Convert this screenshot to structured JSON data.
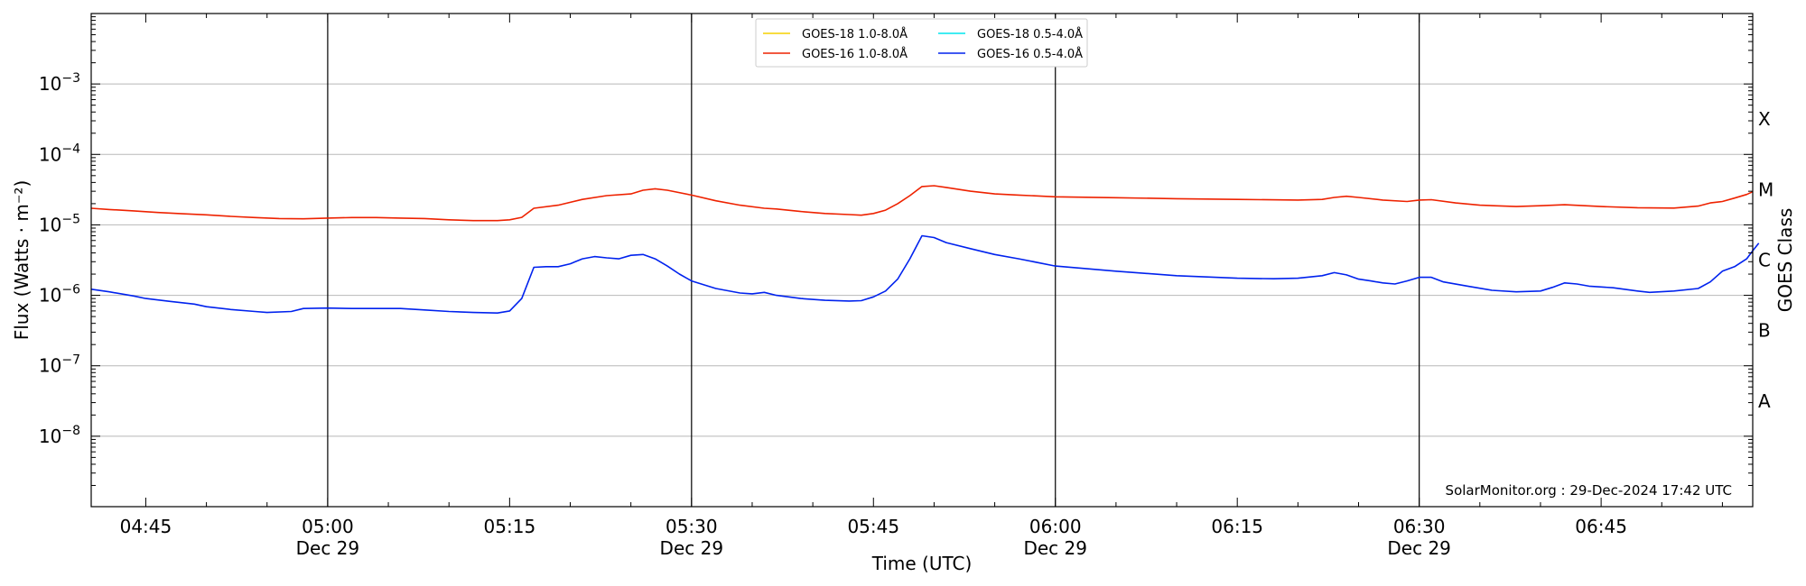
{
  "chart_data": {
    "type": "line",
    "title": "",
    "xlabel": "Time (UTC)",
    "ylabel": "Flux (Watts · m⁻²)",
    "y2label": "GOES Class",
    "yscale": "log",
    "ylim": [
      1e-09,
      0.01
    ],
    "xlim_minutes": [
      40.5,
      177.5
    ],
    "x_ticks": [
      {
        "minute": 45,
        "label": "04:45",
        "sublabel": ""
      },
      {
        "minute": 60,
        "label": "05:00",
        "sublabel": "Dec 29"
      },
      {
        "minute": 75,
        "label": "05:15",
        "sublabel": ""
      },
      {
        "minute": 90,
        "label": "05:30",
        "sublabel": "Dec 29"
      },
      {
        "minute": 105,
        "label": "05:45",
        "sublabel": ""
      },
      {
        "minute": 120,
        "label": "06:00",
        "sublabel": "Dec 29"
      },
      {
        "minute": 135,
        "label": "06:15",
        "sublabel": ""
      },
      {
        "minute": 150,
        "label": "06:30",
        "sublabel": "Dec 29"
      },
      {
        "minute": 165,
        "label": "06:45",
        "sublabel": ""
      }
    ],
    "y_ticks": [
      {
        "value": 1e-08,
        "base": "10",
        "exp": "−8"
      },
      {
        "value": 1e-07,
        "base": "10",
        "exp": "−7"
      },
      {
        "value": 1e-06,
        "base": "10",
        "exp": "−6"
      },
      {
        "value": 1e-05,
        "base": "10",
        "exp": "−5"
      },
      {
        "value": 0.0001,
        "base": "10",
        "exp": "−4"
      },
      {
        "value": 0.001,
        "base": "10",
        "exp": "−3"
      }
    ],
    "class_ticks": [
      {
        "value": 3.16e-08,
        "label": "A"
      },
      {
        "value": 3.16e-07,
        "label": "B"
      },
      {
        "value": 3.16e-06,
        "label": "C"
      },
      {
        "value": 3.16e-05,
        "label": "M"
      },
      {
        "value": 0.000316,
        "label": "X"
      }
    ],
    "grid": {
      "horizontal": true,
      "vertical_day_lines": true
    },
    "legend_position": "top-center",
    "legend": [
      {
        "name": "GOES-18 1.0-8.0Å",
        "color": "#f5d000"
      },
      {
        "name": "GOES-18 0.5-4.0Å",
        "color": "#00e5ee"
      },
      {
        "name": "GOES-16 1.0-8.0Å",
        "color": "#ee2200"
      },
      {
        "name": "GOES-16 0.5-4.0Å",
        "color": "#0022ee"
      }
    ],
    "series": [
      {
        "name": "GOES-16 1.0-8.0Å",
        "color": "#ee2200",
        "points": [
          [
            40.5,
            1.72e-05
          ],
          [
            42,
            1.65e-05
          ],
          [
            44,
            1.58e-05
          ],
          [
            46,
            1.5e-05
          ],
          [
            48,
            1.44e-05
          ],
          [
            50,
            1.39e-05
          ],
          [
            52,
            1.32e-05
          ],
          [
            54,
            1.27e-05
          ],
          [
            56,
            1.23e-05
          ],
          [
            58,
            1.22e-05
          ],
          [
            60,
            1.25e-05
          ],
          [
            62,
            1.27e-05
          ],
          [
            64,
            1.27e-05
          ],
          [
            66,
            1.25e-05
          ],
          [
            68,
            1.23e-05
          ],
          [
            70,
            1.18e-05
          ],
          [
            72,
            1.15e-05
          ],
          [
            74,
            1.15e-05
          ],
          [
            75,
            1.18e-05
          ],
          [
            76,
            1.28e-05
          ],
          [
            77,
            1.72e-05
          ],
          [
            79,
            1.9e-05
          ],
          [
            81,
            2.3e-05
          ],
          [
            83,
            2.6e-05
          ],
          [
            85,
            2.75e-05
          ],
          [
            86,
            3.1e-05
          ],
          [
            87,
            3.25e-05
          ],
          [
            88,
            3.1e-05
          ],
          [
            90,
            2.65e-05
          ],
          [
            92,
            2.2e-05
          ],
          [
            94,
            1.9e-05
          ],
          [
            96,
            1.72e-05
          ],
          [
            97,
            1.68e-05
          ],
          [
            99,
            1.55e-05
          ],
          [
            101,
            1.45e-05
          ],
          [
            103,
            1.4e-05
          ],
          [
            104,
            1.37e-05
          ],
          [
            105,
            1.45e-05
          ],
          [
            106,
            1.62e-05
          ],
          [
            107,
            2e-05
          ],
          [
            108,
            2.6e-05
          ],
          [
            109,
            3.5e-05
          ],
          [
            110,
            3.6e-05
          ],
          [
            111,
            3.4e-05
          ],
          [
            113,
            3e-05
          ],
          [
            115,
            2.75e-05
          ],
          [
            117,
            2.65e-05
          ],
          [
            120,
            2.5e-05
          ],
          [
            125,
            2.43e-05
          ],
          [
            130,
            2.35e-05
          ],
          [
            135,
            2.3e-05
          ],
          [
            140,
            2.25e-05
          ],
          [
            142,
            2.3e-05
          ],
          [
            143,
            2.45e-05
          ],
          [
            144,
            2.55e-05
          ],
          [
            145,
            2.45e-05
          ],
          [
            147,
            2.25e-05
          ],
          [
            149,
            2.15e-05
          ],
          [
            150,
            2.25e-05
          ],
          [
            151,
            2.28e-05
          ],
          [
            153,
            2.05e-05
          ],
          [
            155,
            1.9e-05
          ],
          [
            158,
            1.82e-05
          ],
          [
            160,
            1.87e-05
          ],
          [
            162,
            1.93e-05
          ],
          [
            165,
            1.82e-05
          ],
          [
            168,
            1.75e-05
          ],
          [
            171,
            1.73e-05
          ],
          [
            173,
            1.85e-05
          ],
          [
            174,
            2.05e-05
          ],
          [
            175,
            2.15e-05
          ],
          [
            176,
            2.4e-05
          ],
          [
            177,
            2.7e-05
          ],
          [
            177.5,
            2.95e-05
          ]
        ]
      },
      {
        "name": "GOES-16 0.5-4.0Å",
        "color": "#0022ee",
        "points": [
          [
            40.5,
            1.22e-06
          ],
          [
            42,
            1.12e-06
          ],
          [
            44,
            9.8e-07
          ],
          [
            45,
            9e-07
          ],
          [
            47,
            8.2e-07
          ],
          [
            49,
            7.5e-07
          ],
          [
            50,
            6.9e-07
          ],
          [
            52,
            6.3e-07
          ],
          [
            54,
            5.9e-07
          ],
          [
            55,
            5.7e-07
          ],
          [
            57,
            5.9e-07
          ],
          [
            58,
            6.5e-07
          ],
          [
            60,
            6.6e-07
          ],
          [
            62,
            6.5e-07
          ],
          [
            64,
            6.5e-07
          ],
          [
            66,
            6.5e-07
          ],
          [
            68,
            6.2e-07
          ],
          [
            70,
            5.9e-07
          ],
          [
            72,
            5.7e-07
          ],
          [
            74,
            5.6e-07
          ],
          [
            75,
            6e-07
          ],
          [
            76,
            9e-07
          ],
          [
            77,
            2.5e-06
          ],
          [
            78,
            2.55e-06
          ],
          [
            79,
            2.55e-06
          ],
          [
            80,
            2.8e-06
          ],
          [
            81,
            3.3e-06
          ],
          [
            82,
            3.55e-06
          ],
          [
            83,
            3.4e-06
          ],
          [
            84,
            3.3e-06
          ],
          [
            85,
            3.7e-06
          ],
          [
            86,
            3.8e-06
          ],
          [
            87,
            3.3e-06
          ],
          [
            88,
            2.6e-06
          ],
          [
            89,
            2e-06
          ],
          [
            90,
            1.6e-06
          ],
          [
            92,
            1.25e-06
          ],
          [
            94,
            1.08e-06
          ],
          [
            95,
            1.05e-06
          ],
          [
            96,
            1.1e-06
          ],
          [
            97,
            1e-06
          ],
          [
            99,
            9e-07
          ],
          [
            101,
            8.5e-07
          ],
          [
            103,
            8.3e-07
          ],
          [
            104,
            8.4e-07
          ],
          [
            105,
            9.5e-07
          ],
          [
            106,
            1.15e-06
          ],
          [
            107,
            1.7e-06
          ],
          [
            108,
            3.3e-06
          ],
          [
            109,
            7e-06
          ],
          [
            110,
            6.6e-06
          ],
          [
            111,
            5.6e-06
          ],
          [
            113,
            4.6e-06
          ],
          [
            115,
            3.8e-06
          ],
          [
            117,
            3.3e-06
          ],
          [
            120,
            2.6e-06
          ],
          [
            125,
            2.2e-06
          ],
          [
            130,
            1.9e-06
          ],
          [
            135,
            1.75e-06
          ],
          [
            138,
            1.72e-06
          ],
          [
            140,
            1.75e-06
          ],
          [
            142,
            1.9e-06
          ],
          [
            143,
            2.1e-06
          ],
          [
            144,
            1.95e-06
          ],
          [
            145,
            1.7e-06
          ],
          [
            146,
            1.6e-06
          ],
          [
            147,
            1.5e-06
          ],
          [
            148,
            1.45e-06
          ],
          [
            149,
            1.6e-06
          ],
          [
            150,
            1.8e-06
          ],
          [
            151,
            1.8e-06
          ],
          [
            152,
            1.55e-06
          ],
          [
            154,
            1.35e-06
          ],
          [
            156,
            1.18e-06
          ],
          [
            158,
            1.12e-06
          ],
          [
            160,
            1.15e-06
          ],
          [
            161,
            1.3e-06
          ],
          [
            162,
            1.5e-06
          ],
          [
            163,
            1.45e-06
          ],
          [
            164,
            1.35e-06
          ],
          [
            166,
            1.28e-06
          ],
          [
            168,
            1.15e-06
          ],
          [
            169,
            1.1e-06
          ],
          [
            171,
            1.15e-06
          ],
          [
            173,
            1.25e-06
          ],
          [
            174,
            1.55e-06
          ],
          [
            175,
            2.2e-06
          ],
          [
            176,
            2.55e-06
          ],
          [
            177,
            3.3e-06
          ],
          [
            177.5,
            4.3e-06
          ],
          [
            178,
            5.5e-06
          ]
        ]
      }
    ]
  },
  "footer": {
    "credit": "SolarMonitor.org : 29-Dec-2024 17:42 UTC"
  }
}
